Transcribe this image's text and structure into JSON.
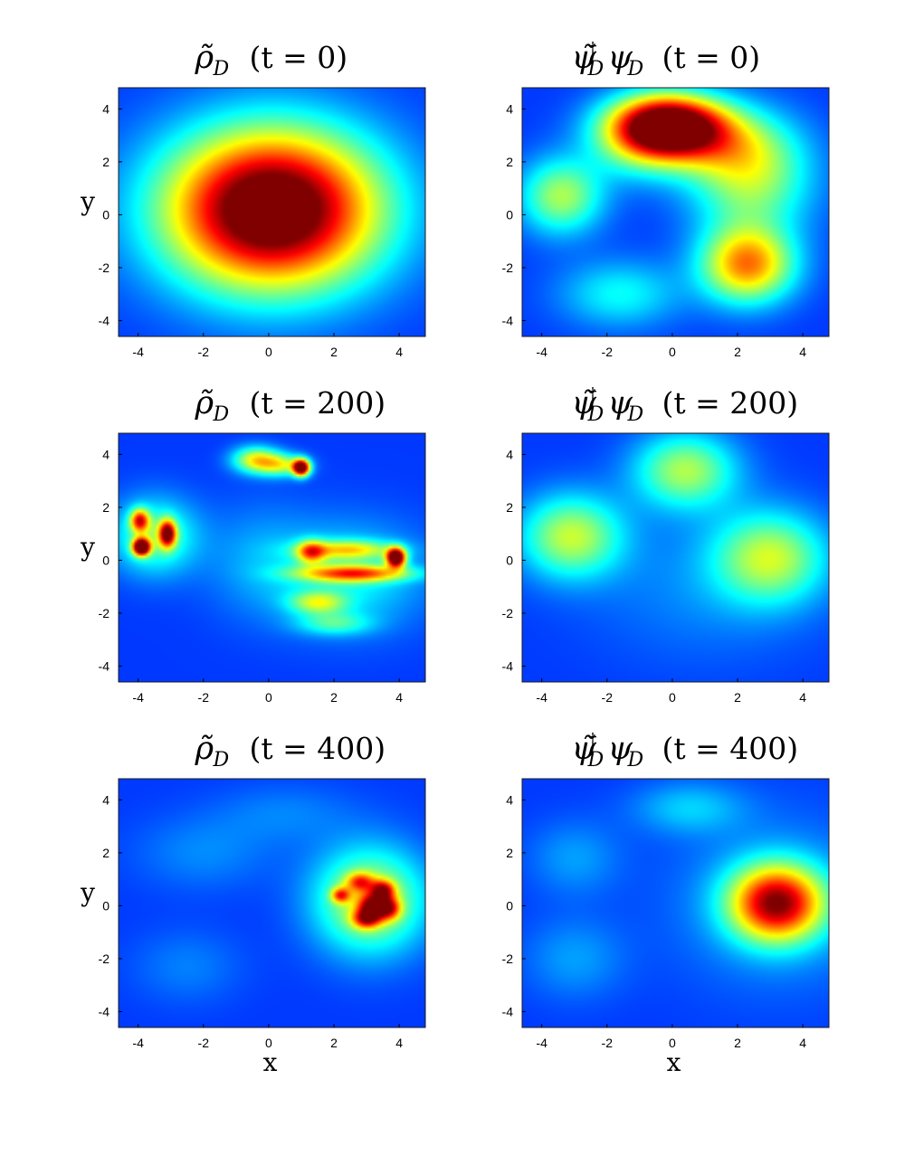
{
  "chart_data": [
    {
      "type": "heatmap",
      "title": {
        "symbol": "ρ̃",
        "subscript": "D",
        "time": "(t = 0)"
      },
      "xlabel": "",
      "ylabel": "y",
      "xlim": [
        -4.6,
        4.8
      ],
      "ylim": [
        -4.6,
        4.8
      ],
      "xticks": [
        "-4",
        "-2",
        "0",
        "2",
        "4"
      ],
      "yticks": [
        "4",
        "2",
        "0",
        "-2",
        "-4"
      ],
      "colormap": "jet",
      "blobs": [
        {
          "x": 0.1,
          "y": 0.2,
          "sx": 2.3,
          "sy": 2.1,
          "amp": 1.0
        }
      ]
    },
    {
      "type": "heatmap",
      "title": {
        "symbol": "ψ̃",
        "superscript": "†",
        "subscript": "D",
        "operand": "ψ",
        "operand_subscript": "D",
        "time": "(t = 0)"
      },
      "xlabel": "",
      "ylabel": "",
      "xlim": [
        -4.6,
        4.8
      ],
      "ylim": [
        -4.6,
        4.8
      ],
      "xticks": [
        "-4",
        "-2",
        "0",
        "2",
        "4"
      ],
      "yticks": [
        "4",
        "2",
        "0",
        "-2",
        "-4"
      ],
      "colormap": "jet",
      "blobs": [
        {
          "x": -0.1,
          "y": 3.4,
          "sx": 1.2,
          "sy": 0.8,
          "amp": 0.88
        },
        {
          "x": 2.3,
          "y": -1.9,
          "sx": 1.0,
          "sy": 1.0,
          "amp": 0.56
        },
        {
          "x": 2.4,
          "y": 1.4,
          "sx": 1.3,
          "sy": 1.5,
          "amp": 0.36
        },
        {
          "x": 1.2,
          "y": 2.7,
          "sx": 1.4,
          "sy": 0.9,
          "amp": 0.24
        },
        {
          "x": -3.4,
          "y": 0.7,
          "sx": 0.9,
          "sy": 1.0,
          "amp": 0.36
        },
        {
          "x": -1.6,
          "y": -3.0,
          "sx": 1.3,
          "sy": 0.9,
          "amp": 0.2
        },
        {
          "x": -1.0,
          "y": 2.8,
          "sx": 1.1,
          "sy": 1.0,
          "amp": 0.26
        }
      ]
    },
    {
      "type": "heatmap",
      "title": {
        "symbol": "ρ̃",
        "subscript": "D",
        "time": "(t = 200)"
      },
      "xlabel": "",
      "ylabel": "y",
      "xlim": [
        -4.6,
        4.8
      ],
      "ylim": [
        -4.6,
        4.8
      ],
      "xticks": [
        "-4",
        "-2",
        "0",
        "2",
        "4"
      ],
      "yticks": [
        "4",
        "2",
        "0",
        "-2",
        "-4"
      ],
      "colormap": "jet",
      "blobs": [
        {
          "x": -3.9,
          "y": 0.5,
          "sx": 0.18,
          "sy": 0.22,
          "amp": 0.95
        },
        {
          "x": -3.1,
          "y": 1.0,
          "sx": 0.18,
          "sy": 0.35,
          "amp": 0.7
        },
        {
          "x": -3.95,
          "y": 1.5,
          "sx": 0.2,
          "sy": 0.3,
          "amp": 0.55
        },
        {
          "x": -3.5,
          "y": 0.9,
          "sx": 0.9,
          "sy": 1.0,
          "amp": 0.3
        },
        {
          "x": 1.0,
          "y": 3.5,
          "sx": 0.18,
          "sy": 0.22,
          "amp": 0.9
        },
        {
          "x": -0.4,
          "y": 3.8,
          "sx": 0.5,
          "sy": 0.35,
          "amp": 0.42
        },
        {
          "x": 0.4,
          "y": 3.6,
          "sx": 0.5,
          "sy": 0.3,
          "amp": 0.35
        },
        {
          "x": 3.9,
          "y": 0.1,
          "sx": 0.2,
          "sy": 0.25,
          "amp": 0.92
        },
        {
          "x": 2.6,
          "y": -0.5,
          "sx": 1.2,
          "sy": 0.22,
          "amp": 0.5
        },
        {
          "x": 2.4,
          "y": 0.4,
          "sx": 1.0,
          "sy": 0.25,
          "amp": 0.35
        },
        {
          "x": 1.3,
          "y": 0.3,
          "sx": 0.3,
          "sy": 0.3,
          "amp": 0.4
        },
        {
          "x": 1.5,
          "y": -1.6,
          "sx": 0.6,
          "sy": 0.3,
          "amp": 0.3
        },
        {
          "x": 2.0,
          "y": -2.4,
          "sx": 0.8,
          "sy": 0.3,
          "amp": 0.2
        },
        {
          "x": 2.5,
          "y": -0.6,
          "sx": 1.6,
          "sy": 1.4,
          "amp": 0.2
        },
        {
          "x": -0.3,
          "y": 0.0,
          "sx": 1.2,
          "sy": 1.5,
          "amp": 0.1
        }
      ]
    },
    {
      "type": "heatmap",
      "title": {
        "symbol": "ψ̃",
        "superscript": "†",
        "subscript": "D",
        "operand": "ψ",
        "operand_subscript": "D",
        "time": "(t = 200)"
      },
      "xlabel": "",
      "ylabel": "",
      "xlim": [
        -4.6,
        4.8
      ],
      "ylim": [
        -4.6,
        4.8
      ],
      "xticks": [
        "-4",
        "-2",
        "0",
        "2",
        "4"
      ],
      "yticks": [
        "4",
        "2",
        "0",
        "-2",
        "-4"
      ],
      "colormap": "jet",
      "blobs": [
        {
          "x": -3.1,
          "y": 0.9,
          "sx": 1.1,
          "sy": 1.1,
          "amp": 0.38
        },
        {
          "x": 0.4,
          "y": 3.4,
          "sx": 1.1,
          "sy": 1.0,
          "amp": 0.36
        },
        {
          "x": 3.0,
          "y": 0.1,
          "sx": 1.2,
          "sy": 1.2,
          "amp": 0.36
        },
        {
          "x": 1.0,
          "y": -1.0,
          "sx": 2.5,
          "sy": 2.0,
          "amp": 0.08
        }
      ]
    },
    {
      "type": "heatmap",
      "title": {
        "symbol": "ρ̃",
        "subscript": "D",
        "time": "(t = 400)"
      },
      "xlabel": "x",
      "ylabel": "y",
      "xlim": [
        -4.6,
        4.8
      ],
      "ylim": [
        -4.6,
        4.8
      ],
      "xticks": [
        "-4",
        "-2",
        "0",
        "2",
        "4"
      ],
      "yticks": [
        "4",
        "2",
        "0",
        "-2",
        "-4"
      ],
      "colormap": "jet",
      "blobs": [
        {
          "x": 3.1,
          "y": 0.2,
          "sx": 1.2,
          "sy": 1.4,
          "amp": 0.42
        },
        {
          "x": 3.2,
          "y": 0.0,
          "sx": 0.3,
          "sy": 0.3,
          "amp": 0.5
        },
        {
          "x": 3.5,
          "y": 0.6,
          "sx": 0.25,
          "sy": 0.25,
          "amp": 0.45
        },
        {
          "x": 2.2,
          "y": 0.4,
          "sx": 0.2,
          "sy": 0.2,
          "amp": 0.4
        },
        {
          "x": 3.0,
          "y": -0.5,
          "sx": 0.3,
          "sy": 0.25,
          "amp": 0.45
        },
        {
          "x": 3.7,
          "y": -0.1,
          "sx": 0.25,
          "sy": 0.3,
          "amp": 0.4
        },
        {
          "x": 2.8,
          "y": 0.9,
          "sx": 0.3,
          "sy": 0.25,
          "amp": 0.35
        },
        {
          "x": -2.0,
          "y": 2.0,
          "sx": 1.5,
          "sy": 1.0,
          "amp": 0.08
        },
        {
          "x": -2.5,
          "y": -2.3,
          "sx": 1.2,
          "sy": 1.0,
          "amp": 0.07
        },
        {
          "x": 0.5,
          "y": 3.5,
          "sx": 1.5,
          "sy": 0.8,
          "amp": 0.07
        }
      ]
    },
    {
      "type": "heatmap",
      "title": {
        "symbol": "ψ̃",
        "superscript": "†",
        "subscript": "D",
        "operand": "ψ",
        "operand_subscript": "D",
        "time": "(t = 400)"
      },
      "xlabel": "x",
      "ylabel": "",
      "xlim": [
        -4.6,
        4.8
      ],
      "ylim": [
        -4.6,
        4.8
      ],
      "xticks": [
        "-4",
        "-2",
        "0",
        "2",
        "4"
      ],
      "yticks": [
        "4",
        "2",
        "0",
        "-2",
        "-4"
      ],
      "colormap": "jet",
      "blobs": [
        {
          "x": 3.2,
          "y": 0.1,
          "sx": 1.0,
          "sy": 1.0,
          "amp": 0.72
        },
        {
          "x": 0.5,
          "y": 3.7,
          "sx": 1.2,
          "sy": 0.7,
          "amp": 0.14
        },
        {
          "x": -3.0,
          "y": 1.8,
          "sx": 1.0,
          "sy": 1.0,
          "amp": 0.1
        },
        {
          "x": -3.0,
          "y": -2.0,
          "sx": 1.1,
          "sy": 1.1,
          "amp": 0.1
        },
        {
          "x": 3.2,
          "y": 0.1,
          "sx": 2.2,
          "sy": 2.2,
          "amp": 0.12
        }
      ]
    }
  ]
}
